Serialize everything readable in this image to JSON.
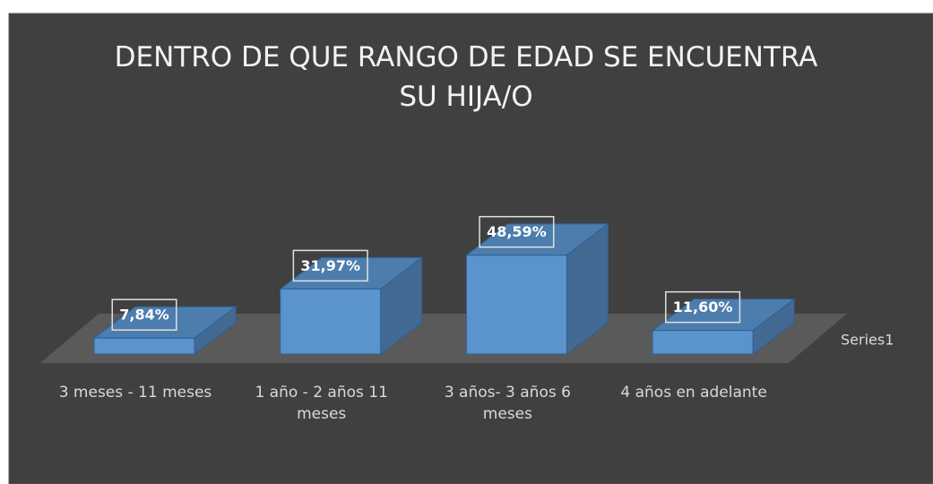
{
  "chart_data": {
    "type": "bar3d",
    "title": "DENTRO DE QUE RANGO DE EDAD SE ENCUENTRA SU HIJA/O",
    "categories": [
      "3 meses - 11 meses",
      "1 año - 2 años 11 meses",
      "3 años- 3 años 6 meses",
      "4 años en adelante"
    ],
    "series": [
      {
        "name": "Series1",
        "color": "#5b93cc",
        "values": [
          7.84,
          31.97,
          48.59,
          11.6
        ],
        "value_labels": [
          "7,84%",
          "31,97%",
          "48,59%",
          "11,60%"
        ]
      }
    ]
  }
}
